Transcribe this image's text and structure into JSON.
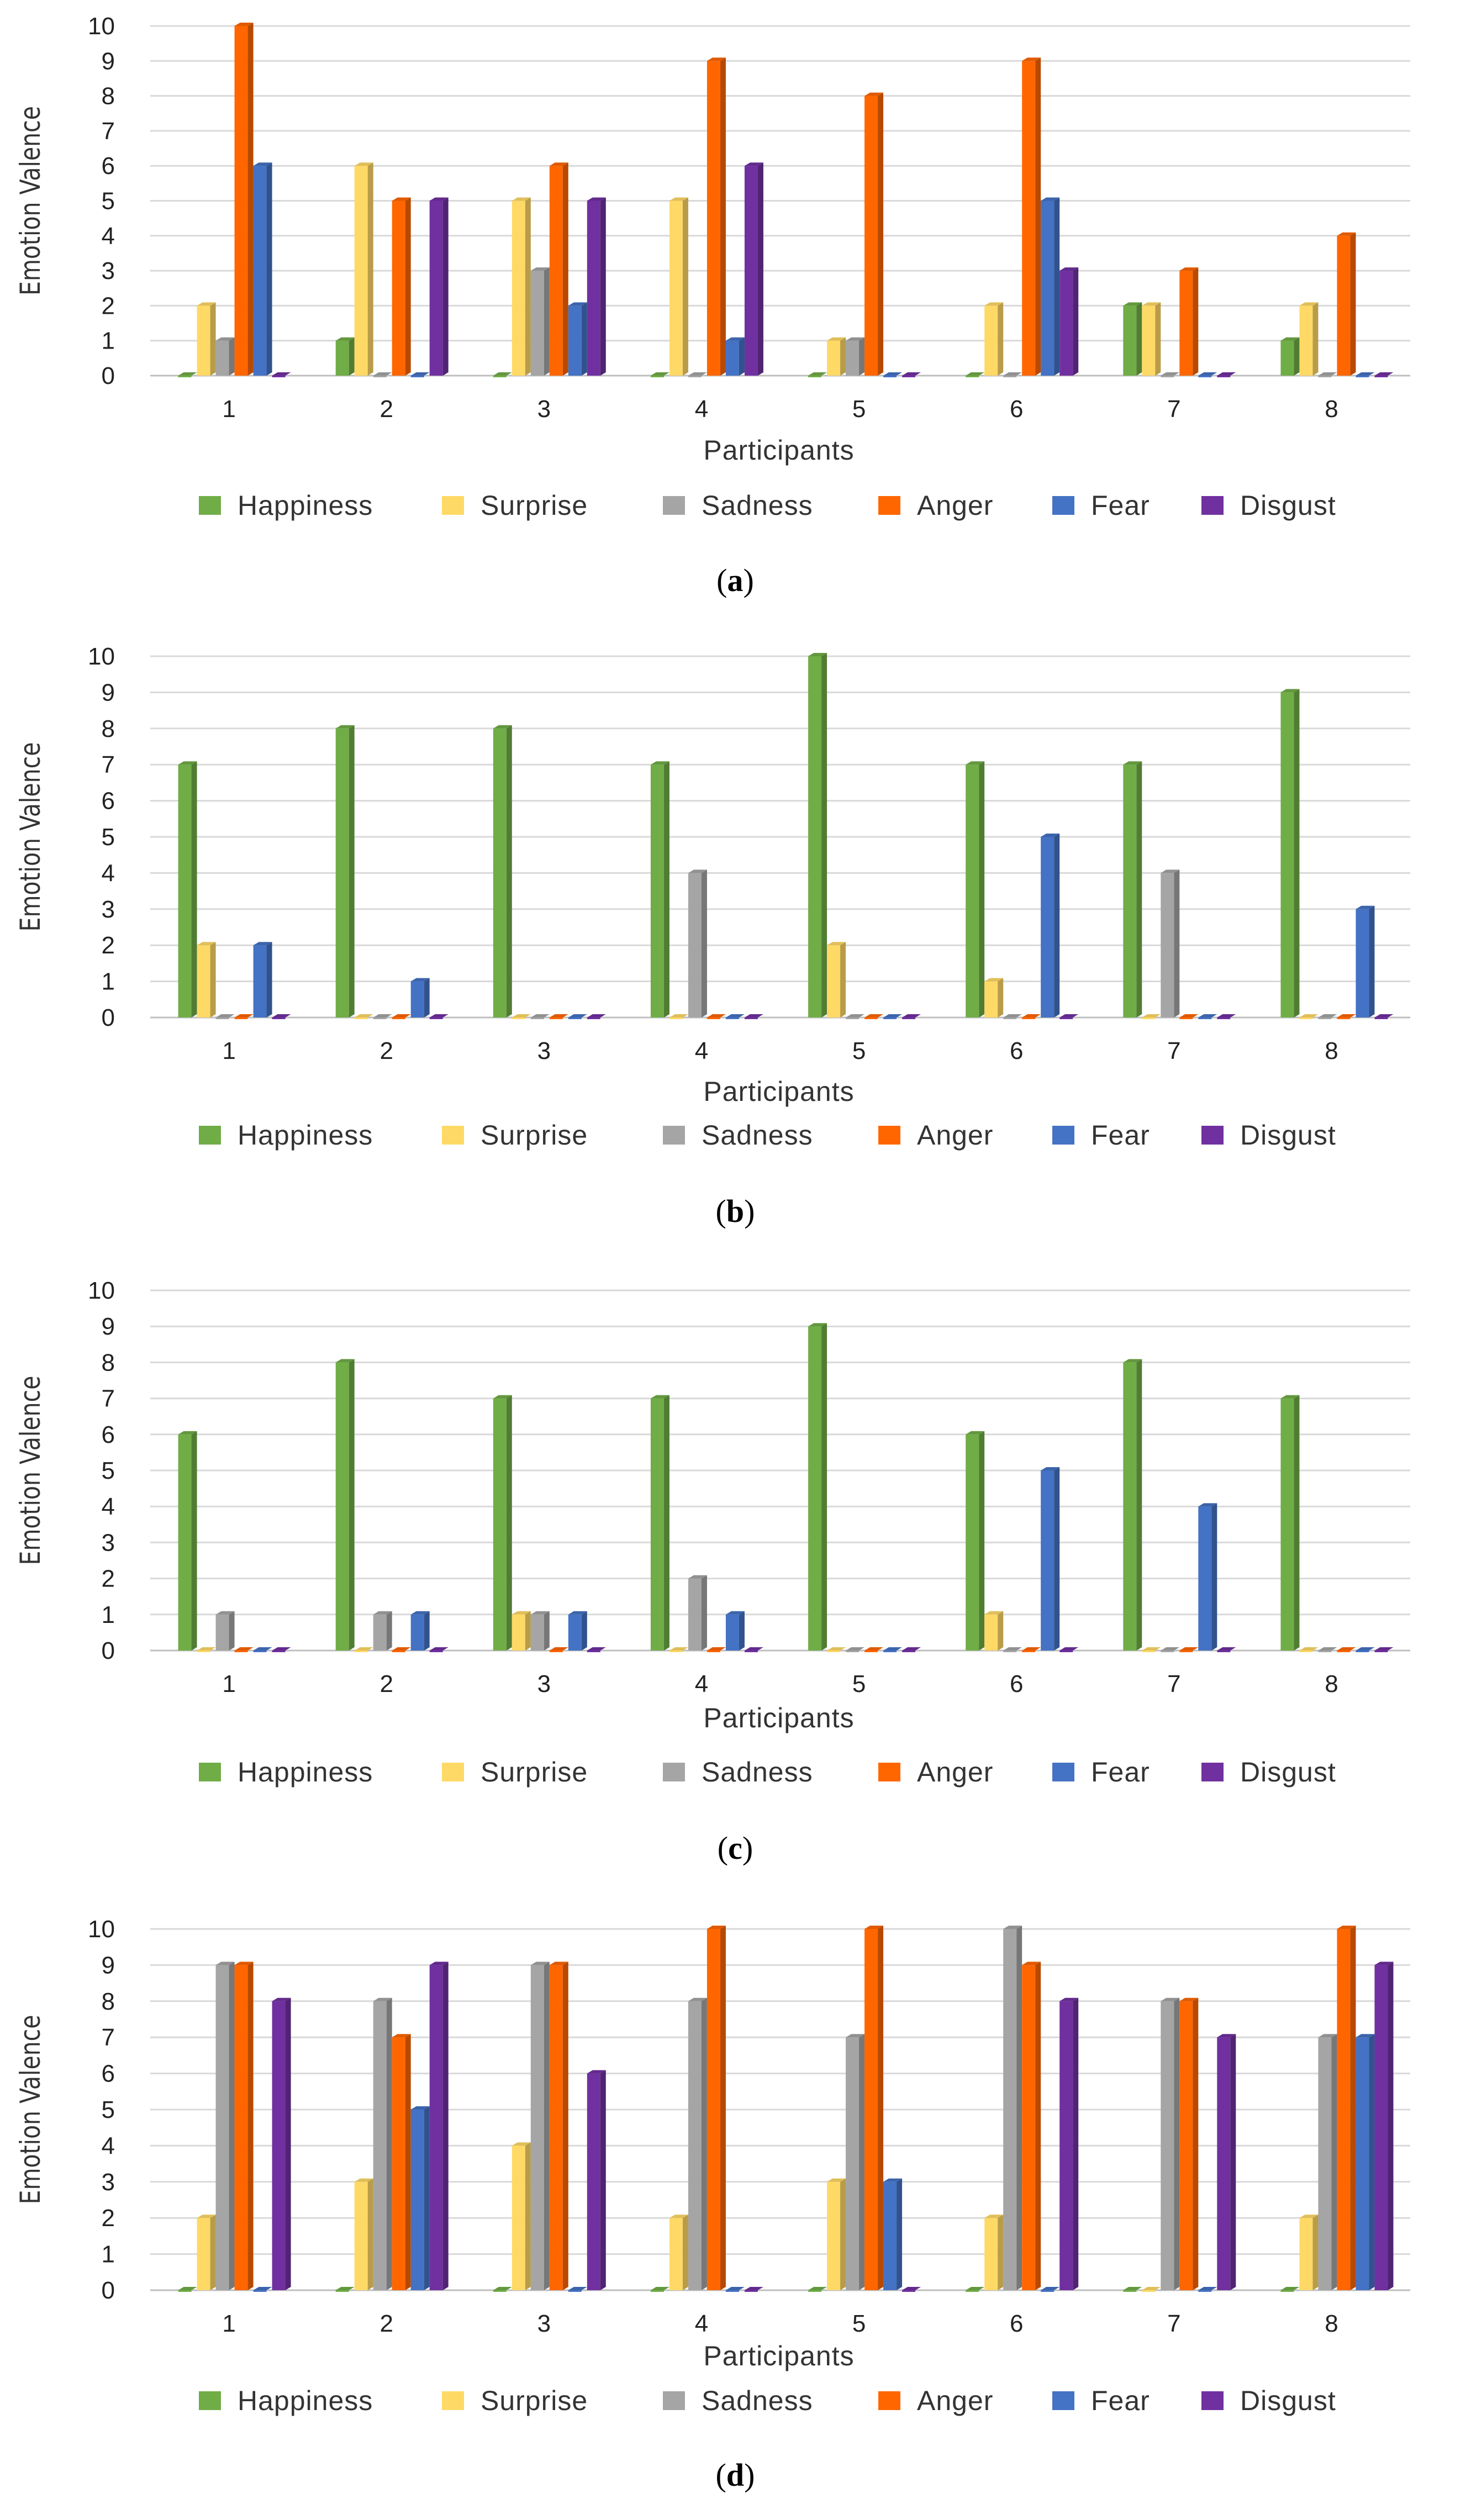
{
  "series_colors": {
    "Happiness": "#70ad47",
    "Surprise": "#ffd966",
    "Sadness": "#a5a5a5",
    "Anger": "#ff6600",
    "Fear": "#4472c4",
    "Disgust": "#7030a0"
  },
  "chart_data": [
    {
      "type": "bar",
      "caption": "(a)",
      "caption_letter": "a",
      "xlabel": "Participants",
      "ylabel": "Emotion Valence",
      "ylim": [
        0,
        10
      ],
      "yticks": [
        0,
        1,
        2,
        3,
        4,
        5,
        6,
        7,
        8,
        9,
        10
      ],
      "grid": true,
      "legend": "bottom",
      "categories": [
        "1",
        "2",
        "3",
        "4",
        "5",
        "6",
        "7",
        "8"
      ],
      "series": [
        {
          "name": "Happiness",
          "values": [
            0,
            1,
            0,
            0,
            0,
            0,
            2,
            1
          ]
        },
        {
          "name": "Surprise",
          "values": [
            2,
            6,
            5,
            5,
            1,
            2,
            2,
            2
          ]
        },
        {
          "name": "Sadness",
          "values": [
            1,
            0,
            3,
            0,
            1,
            0,
            0,
            0
          ]
        },
        {
          "name": "Anger",
          "values": [
            10,
            5,
            6,
            9,
            8,
            9,
            3,
            4
          ]
        },
        {
          "name": "Fear",
          "values": [
            6,
            0,
            2,
            1,
            0,
            5,
            0,
            0
          ]
        },
        {
          "name": "Disgust",
          "values": [
            0,
            5,
            5,
            6,
            0,
            3,
            0,
            0
          ]
        }
      ]
    },
    {
      "type": "bar",
      "caption": "(b)",
      "caption_letter": "b",
      "xlabel": "Participants",
      "ylabel": "Emotion Valence",
      "ylim": [
        0,
        10
      ],
      "yticks": [
        0,
        1,
        2,
        3,
        4,
        5,
        6,
        7,
        8,
        9,
        10
      ],
      "grid": true,
      "legend": "bottom",
      "categories": [
        "1",
        "2",
        "3",
        "4",
        "5",
        "6",
        "7",
        "8"
      ],
      "series": [
        {
          "name": "Happiness",
          "values": [
            7,
            8,
            8,
            7,
            10,
            7,
            7,
            9
          ]
        },
        {
          "name": "Surprise",
          "values": [
            2,
            0,
            0,
            0,
            2,
            1,
            0,
            0
          ]
        },
        {
          "name": "Sadness",
          "values": [
            0,
            0,
            0,
            4,
            0,
            0,
            4,
            0
          ]
        },
        {
          "name": "Anger",
          "values": [
            0,
            0,
            0,
            0,
            0,
            0,
            0,
            0
          ]
        },
        {
          "name": "Fear",
          "values": [
            2,
            1,
            0,
            0,
            0,
            5,
            0,
            3
          ]
        },
        {
          "name": "Disgust",
          "values": [
            0,
            0,
            0,
            0,
            0,
            0,
            0,
            0
          ]
        }
      ]
    },
    {
      "type": "bar",
      "caption": "(c)",
      "caption_letter": "c",
      "xlabel": "Participants",
      "ylabel": "Emotion Valence",
      "ylim": [
        0,
        10
      ],
      "yticks": [
        0,
        1,
        2,
        3,
        4,
        5,
        6,
        7,
        8,
        9,
        10
      ],
      "grid": true,
      "legend": "bottom",
      "categories": [
        "1",
        "2",
        "3",
        "4",
        "5",
        "6",
        "7",
        "8"
      ],
      "series": [
        {
          "name": "Happiness",
          "values": [
            6,
            8,
            7,
            7,
            9,
            6,
            8,
            7
          ]
        },
        {
          "name": "Surprise",
          "values": [
            0,
            0,
            1,
            0,
            0,
            1,
            0,
            0
          ]
        },
        {
          "name": "Sadness",
          "values": [
            1,
            1,
            1,
            2,
            0,
            0,
            0,
            0
          ]
        },
        {
          "name": "Anger",
          "values": [
            0,
            0,
            0,
            0,
            0,
            0,
            0,
            0
          ]
        },
        {
          "name": "Fear",
          "values": [
            0,
            1,
            1,
            1,
            0,
            5,
            4,
            0
          ]
        },
        {
          "name": "Disgust",
          "values": [
            0,
            0,
            0,
            0,
            0,
            0,
            0,
            0
          ]
        }
      ]
    },
    {
      "type": "bar",
      "caption": "(d)",
      "caption_letter": "d",
      "xlabel": "Participants",
      "ylabel": "Emotion Valence",
      "ylim": [
        0,
        10
      ],
      "yticks": [
        0,
        1,
        2,
        3,
        4,
        5,
        6,
        7,
        8,
        9,
        10
      ],
      "grid": true,
      "legend": "bottom",
      "categories": [
        "1",
        "2",
        "3",
        "4",
        "5",
        "6",
        "7",
        "8"
      ],
      "series": [
        {
          "name": "Happiness",
          "values": [
            0,
            0,
            0,
            0,
            0,
            0,
            0,
            0
          ]
        },
        {
          "name": "Surprise",
          "values": [
            2,
            3,
            4,
            2,
            3,
            2,
            0,
            2
          ]
        },
        {
          "name": "Sadness",
          "values": [
            9,
            8,
            9,
            8,
            7,
            10,
            8,
            7
          ]
        },
        {
          "name": "Anger",
          "values": [
            9,
            7,
            9,
            10,
            10,
            9,
            8,
            10
          ]
        },
        {
          "name": "Fear",
          "values": [
            0,
            5,
            0,
            0,
            3,
            0,
            0,
            7
          ]
        },
        {
          "name": "Disgust",
          "values": [
            8,
            9,
            6,
            0,
            0,
            8,
            7,
            9
          ]
        }
      ]
    }
  ]
}
